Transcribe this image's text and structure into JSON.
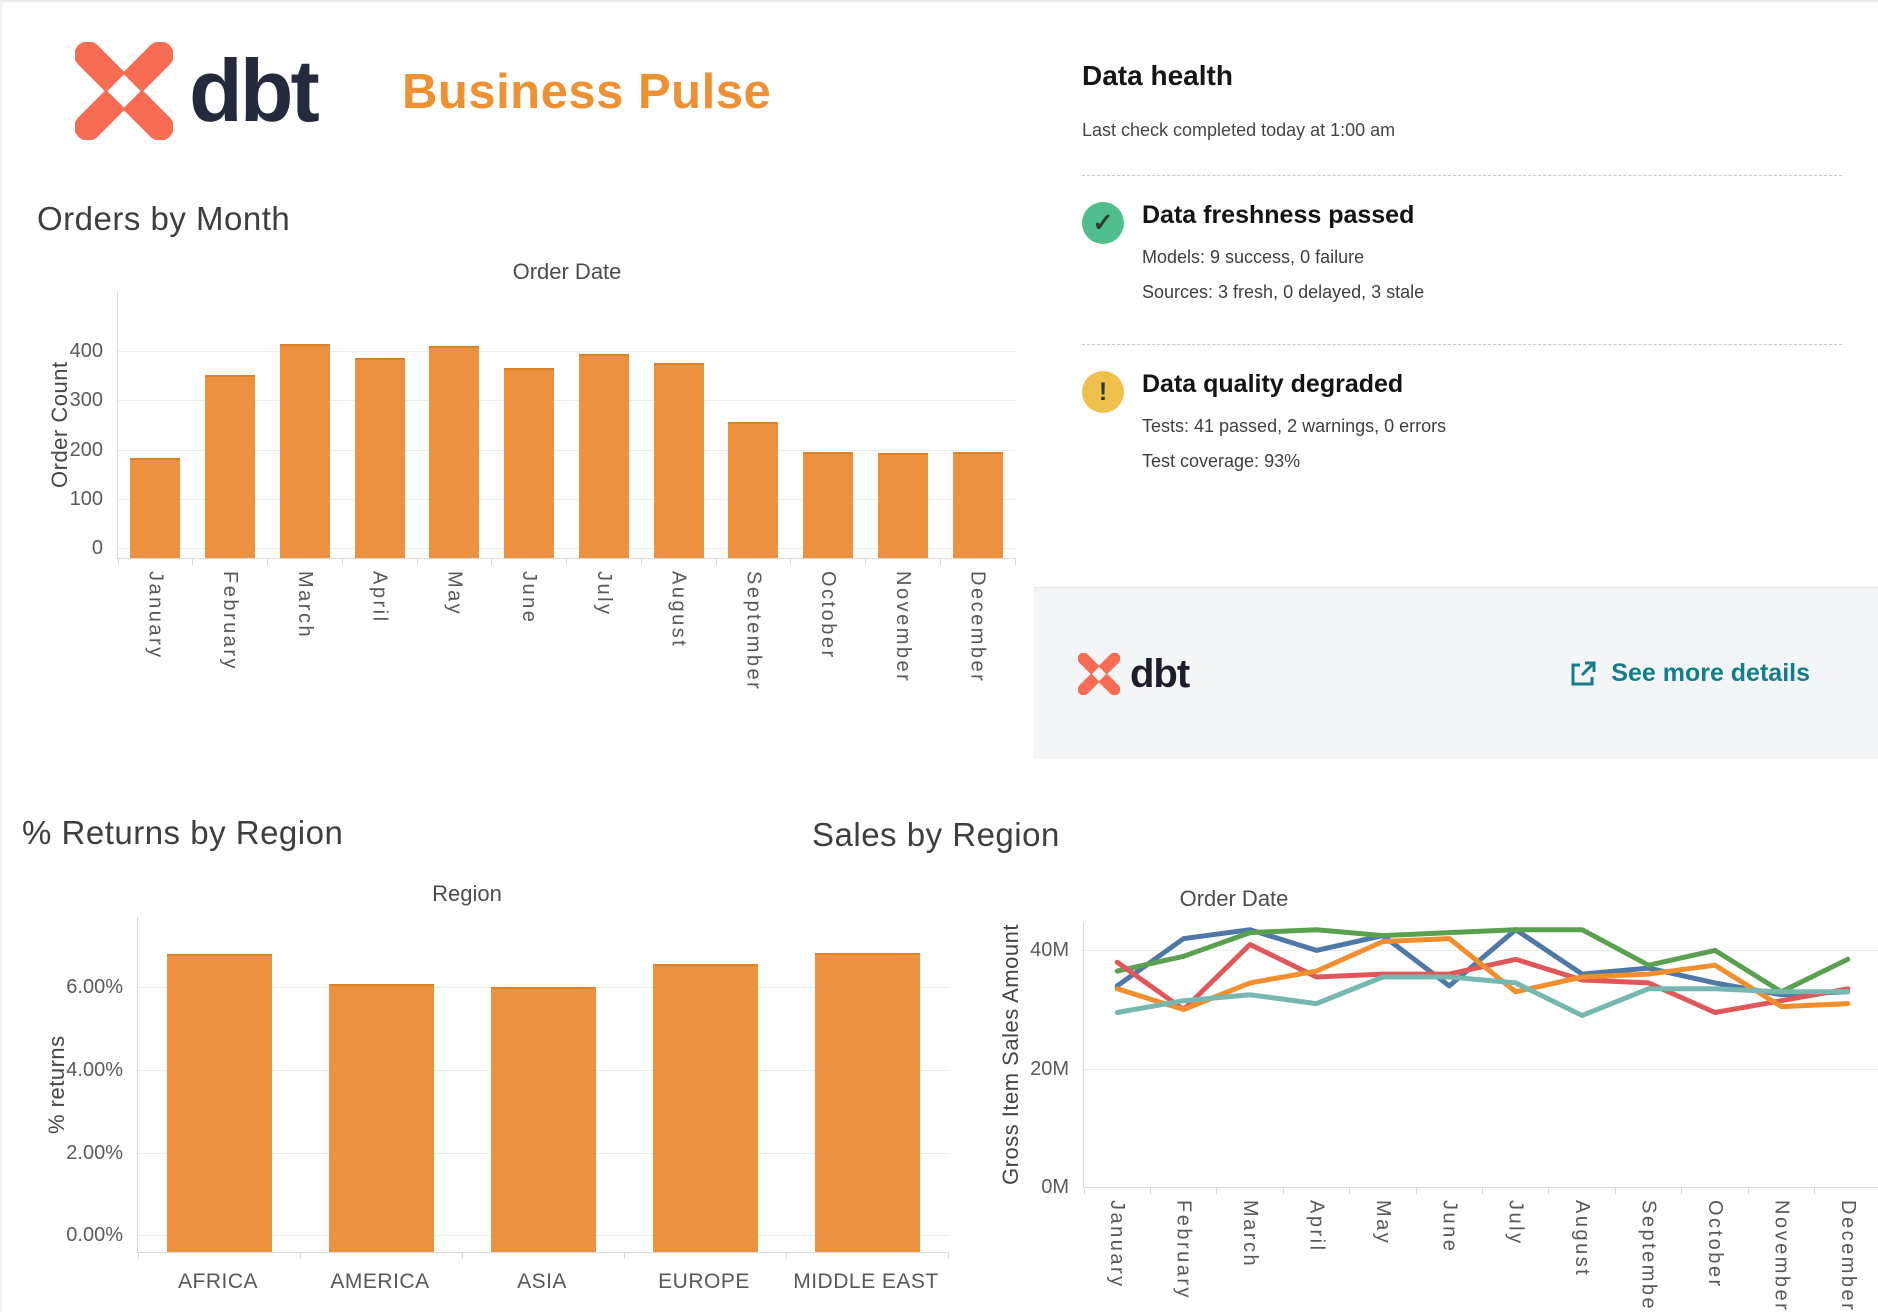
{
  "header": {
    "brand": "dbt",
    "title": "Business Pulse"
  },
  "colors": {
    "accent_orange": "#EE9132",
    "bar_fill": "#EB9140",
    "brand_coral": "#F76C52",
    "brand_navy": "#24293B",
    "link_teal": "#137E8A",
    "status_green": "#4FBE8C",
    "status_amber": "#F0C04D"
  },
  "data_health": {
    "title": "Data health",
    "subtitle": "Last check completed today at 1:00 am",
    "items": [
      {
        "icon": "check",
        "title": "Data freshness passed",
        "lines": [
          "Models: 9 success, 0 failure",
          "Sources: 3 fresh, 0 delayed, 3 stale"
        ]
      },
      {
        "icon": "exclamation",
        "title": "Data quality degraded",
        "lines": [
          "Tests: 41 passed, 2 warnings, 0 errors",
          "Test coverage: 93%"
        ]
      }
    ],
    "footer": {
      "brand": "dbt",
      "link_label": "See more details"
    }
  },
  "chart_data": [
    {
      "id": "orders-by-month",
      "type": "bar",
      "section_title": "Orders by Month",
      "title": "Order Date",
      "xlabel": "Order Date",
      "ylabel": "Order Count",
      "categories": [
        "January",
        "February",
        "March",
        "April",
        "May",
        "June",
        "July",
        "August",
        "September",
        "October",
        "November",
        "December"
      ],
      "values": [
        178,
        347,
        410,
        383,
        407,
        362,
        391,
        371,
        253,
        192,
        190,
        192
      ],
      "yticks": [
        0,
        100,
        200,
        300,
        400
      ],
      "ytick_format": "count",
      "ylim": [
        -20,
        520
      ],
      "grid": true,
      "legend": "none",
      "bar_color": "#EB9140"
    },
    {
      "id": "returns-by-region",
      "type": "bar",
      "section_title": "% Returns by Region",
      "title": "Region",
      "xlabel": "Region",
      "ylabel": "% returns",
      "categories": [
        "AFRICA",
        "AMERICA",
        "ASIA",
        "EUROPE",
        "MIDDLE EAST"
      ],
      "values": [
        6.75,
        6.02,
        5.96,
        6.52,
        6.78
      ],
      "yticks": [
        0,
        2,
        4,
        6
      ],
      "ytick_format": "pct2",
      "ylim": [
        -0.4,
        7.7
      ],
      "grid": true,
      "legend": "none",
      "bar_color": "#EB9140"
    },
    {
      "id": "sales-by-region",
      "type": "line",
      "section_title": "Sales by Region",
      "title": "Order Date",
      "xlabel": "Order Date",
      "ylabel": "Gross Item Sales Amount",
      "categories": [
        "January",
        "February",
        "March",
        "April",
        "May",
        "June",
        "July",
        "August",
        "September",
        "October",
        "November",
        "December"
      ],
      "series": [
        {
          "name": "blue",
          "color": "#4E79A7",
          "values": [
            34.0,
            42.0,
            43.5,
            40.0,
            42.5,
            34.0,
            43.5,
            36.0,
            37.0,
            34.5,
            32.5,
            33.0
          ]
        },
        {
          "name": "green",
          "color": "#59A14F",
          "values": [
            36.5,
            39.0,
            43.0,
            43.5,
            42.5,
            43.0,
            43.5,
            43.5,
            37.5,
            40.0,
            33.0,
            38.5
          ]
        },
        {
          "name": "red",
          "color": "#E15759",
          "values": [
            38.0,
            30.0,
            41.0,
            35.5,
            36.0,
            36.0,
            38.5,
            35.0,
            34.5,
            29.5,
            31.5,
            33.5
          ]
        },
        {
          "name": "orange",
          "color": "#F28E2B",
          "values": [
            33.5,
            30.0,
            34.5,
            36.5,
            41.5,
            42.0,
            33.0,
            35.5,
            36.0,
            37.5,
            30.5,
            31.0
          ]
        },
        {
          "name": "teal",
          "color": "#76B7B2",
          "values": [
            29.5,
            31.5,
            32.5,
            31.0,
            35.5,
            35.5,
            34.5,
            29.0,
            33.5,
            33.5,
            33.0,
            33.0
          ]
        }
      ],
      "yticks": [
        0,
        20,
        40
      ],
      "ytick_format": "M",
      "ylim": [
        0,
        44.8
      ],
      "grid": true,
      "legend": "none"
    }
  ]
}
